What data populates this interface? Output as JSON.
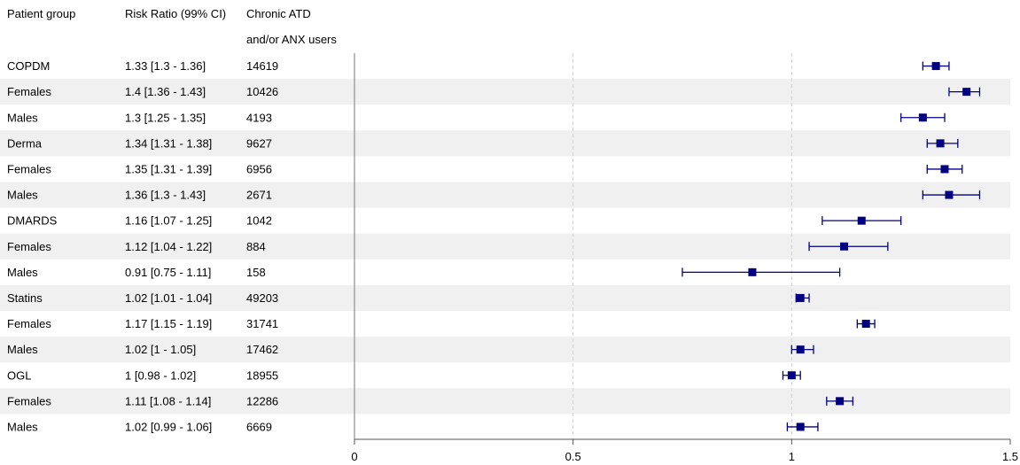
{
  "chart_data": {
    "type": "forest",
    "columns": {
      "group": "Patient group",
      "rr": "Risk Ratio (99% CI)",
      "users_line1": "Chronic ATD",
      "users_line2": "and/or ANX users"
    },
    "xlim": [
      0,
      1.5
    ],
    "x_ticks": [
      0,
      0.5,
      1,
      1.5
    ],
    "x_tick_labels": [
      "0",
      "0.5",
      "1",
      "1.5"
    ],
    "reference_line": 0,
    "grid_lines": [
      0.5,
      1
    ],
    "marker_color": "#000080",
    "band_color": "#f0f0f0",
    "rows": [
      {
        "group": "COPDM",
        "rr_text": "1.33 [1.3 - 1.36]",
        "n": "14619",
        "rr": 1.33,
        "lo": 1.3,
        "hi": 1.36
      },
      {
        "group": "Females",
        "rr_text": "1.4 [1.36 - 1.43]",
        "n": "10426",
        "rr": 1.4,
        "lo": 1.36,
        "hi": 1.43
      },
      {
        "group": "Males",
        "rr_text": "1.3 [1.25 - 1.35]",
        "n": "4193",
        "rr": 1.3,
        "lo": 1.25,
        "hi": 1.35
      },
      {
        "group": "Derma",
        "rr_text": "1.34 [1.31 - 1.38]",
        "n": "9627",
        "rr": 1.34,
        "lo": 1.31,
        "hi": 1.38
      },
      {
        "group": "Females",
        "rr_text": "1.35 [1.31 - 1.39]",
        "n": "6956",
        "rr": 1.35,
        "lo": 1.31,
        "hi": 1.39
      },
      {
        "group": "Males",
        "rr_text": "1.36 [1.3 - 1.43]",
        "n": "2671",
        "rr": 1.36,
        "lo": 1.3,
        "hi": 1.43
      },
      {
        "group": "DMARDS",
        "rr_text": "1.16 [1.07 - 1.25]",
        "n": "1042",
        "rr": 1.16,
        "lo": 1.07,
        "hi": 1.25
      },
      {
        "group": "Females",
        "rr_text": "1.12 [1.04 - 1.22]",
        "n": "884",
        "rr": 1.12,
        "lo": 1.04,
        "hi": 1.22
      },
      {
        "group": "Males",
        "rr_text": "0.91 [0.75 - 1.11]",
        "n": "158",
        "rr": 0.91,
        "lo": 0.75,
        "hi": 1.11
      },
      {
        "group": "Statins",
        "rr_text": "1.02 [1.01 - 1.04]",
        "n": "49203",
        "rr": 1.02,
        "lo": 1.01,
        "hi": 1.04
      },
      {
        "group": "Females",
        "rr_text": "1.17 [1.15 - 1.19]",
        "n": "31741",
        "rr": 1.17,
        "lo": 1.15,
        "hi": 1.19
      },
      {
        "group": "Males",
        "rr_text": "1.02 [1 - 1.05]",
        "n": "17462",
        "rr": 1.02,
        "lo": 1.0,
        "hi": 1.05
      },
      {
        "group": "OGL",
        "rr_text": "1 [0.98 - 1.02]",
        "n": "18955",
        "rr": 1.0,
        "lo": 0.98,
        "hi": 1.02
      },
      {
        "group": "Females",
        "rr_text": "1.11 [1.08 - 1.14]",
        "n": "12286",
        "rr": 1.11,
        "lo": 1.08,
        "hi": 1.14
      },
      {
        "group": "Males",
        "rr_text": "1.02 [0.99 - 1.06]",
        "n": "6669",
        "rr": 1.02,
        "lo": 0.99,
        "hi": 1.06
      }
    ]
  }
}
